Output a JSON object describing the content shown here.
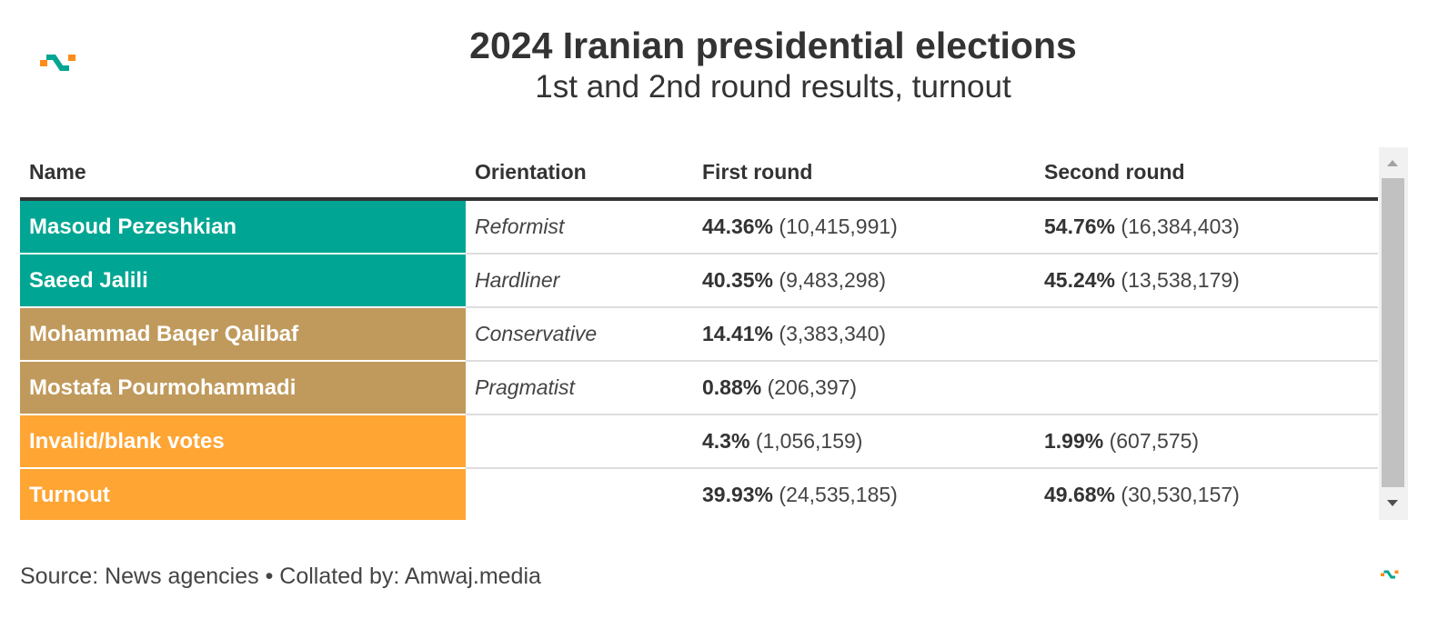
{
  "header": {
    "title": "2024 Iranian presidential elections",
    "subtitle": "1st and 2nd round results, turnout"
  },
  "logo": {
    "icon": "amwaj-logo-icon",
    "colors": [
      "#ff8c1a",
      "#00a693"
    ]
  },
  "chart_data": {
    "type": "table",
    "title": "2024 Iranian presidential elections",
    "subtitle": "1st and 2nd round results, turnout",
    "columns": [
      "Name",
      "Orientation",
      "First round",
      "Second round"
    ],
    "rows": [
      {
        "name": "Masoud Pezeshkian",
        "color": "#00a693",
        "orientation": "Reformist",
        "first_pct": "44.36%",
        "first_count": "(10,415,991)",
        "second_pct": "54.76%",
        "second_count": "(16,384,403)"
      },
      {
        "name": "Saeed Jalili",
        "color": "#00a693",
        "orientation": "Hardliner",
        "first_pct": "40.35%",
        "first_count": "(9,483,298)",
        "second_pct": "45.24%",
        "second_count": "(13,538,179)"
      },
      {
        "name": "Mohammad Baqer Qalibaf",
        "color": "#c09a5c",
        "orientation": "Conservative",
        "first_pct": "14.41%",
        "first_count": "(3,383,340)",
        "second_pct": "",
        "second_count": ""
      },
      {
        "name": "Mostafa Pourmohammadi",
        "color": "#c09a5c",
        "orientation": "Pragmatist",
        "first_pct": "0.88%",
        "first_count": "(206,397)",
        "second_pct": "",
        "second_count": ""
      },
      {
        "name": "Invalid/blank votes",
        "color": "#ffa533",
        "orientation": "",
        "first_pct": "4.3%",
        "first_count": "(1,056,159)",
        "second_pct": "1.99%",
        "second_count": "(607,575)"
      },
      {
        "name": "Turnout",
        "color": "#ffa533",
        "orientation": "",
        "first_pct": "39.93%",
        "first_count": "(24,535,185)",
        "second_pct": "49.68%",
        "second_count": "(30,530,157)"
      }
    ]
  },
  "footer": {
    "source": "Source: News agencies • Collated by: Amwaj.media"
  }
}
